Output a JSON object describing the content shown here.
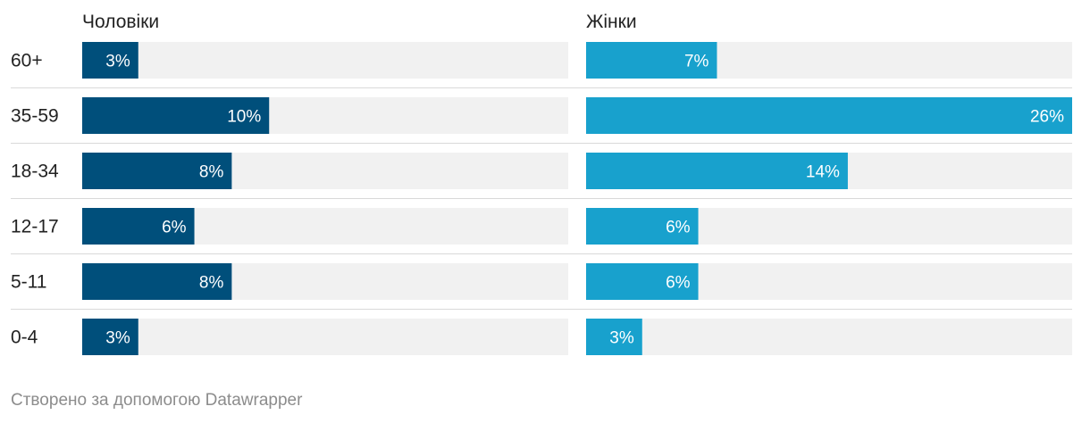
{
  "chart_data": {
    "type": "bar",
    "orientation": "horizontal",
    "categories": [
      "60+",
      "35-59",
      "18-34",
      "12-17",
      "5-11",
      "0-4"
    ],
    "series": [
      {
        "name": "Чоловіки",
        "values": [
          3,
          10,
          8,
          6,
          8,
          3
        ],
        "labels": [
          "3%",
          "10%",
          "8%",
          "6%",
          "8%",
          "3%"
        ],
        "color": "#004f7b"
      },
      {
        "name": "Жінки",
        "values": [
          7,
          26,
          14,
          6,
          6,
          3
        ],
        "labels": [
          "7%",
          "26%",
          "14%",
          "6%",
          "6%",
          "3%"
        ],
        "color": "#18a1cd"
      }
    ],
    "xlim": [
      0,
      26
    ],
    "background_bar_color": "#f1f1f1",
    "separator_color": "#d9d9d9",
    "unit": "%"
  },
  "footer": {
    "text": "Створено за допомогою Datawrapper"
  }
}
